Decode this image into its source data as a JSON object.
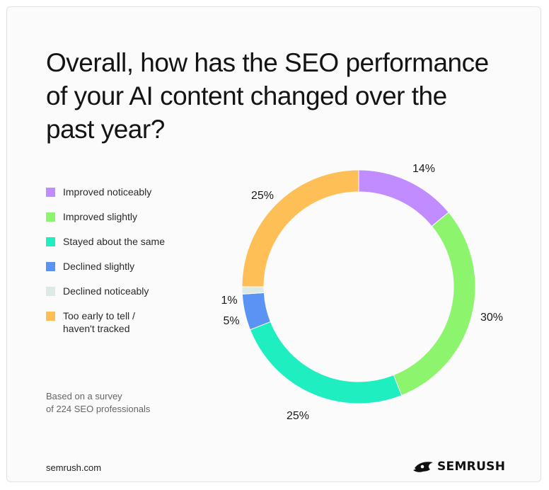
{
  "title": "Overall, how has the SEO performance of your AI content changed over the past year?",
  "note_lines": [
    "Based on a survey",
    "of 224 SEO professionals"
  ],
  "source": "semrush.com",
  "brand": {
    "name": "SEMRUSH",
    "logo_icon": "semrush-flame-icon"
  },
  "chart_data": {
    "type": "pie",
    "style": "donut",
    "title": "Overall, how has the SEO performance of your AI content changed over the past year?",
    "legend_position": "left",
    "slices": [
      {
        "label": "Improved noticeably",
        "value": 14,
        "display": "14%",
        "color": "#c08cff"
      },
      {
        "label": "Improved slightly",
        "value": 30,
        "display": "30%",
        "color": "#8cf56d"
      },
      {
        "label": "Stayed about the same",
        "value": 25,
        "display": "25%",
        "color": "#1eeec0"
      },
      {
        "label": "Declined slightly",
        "value": 5,
        "display": "5%",
        "color": "#5b93f5"
      },
      {
        "label": "Declined noticeably",
        "value": 1,
        "display": "1%",
        "color": "#dceae3"
      },
      {
        "label": "Too early to tell / haven't tracked",
        "value": 25,
        "display": "25%",
        "color": "#ffbf57"
      }
    ]
  }
}
